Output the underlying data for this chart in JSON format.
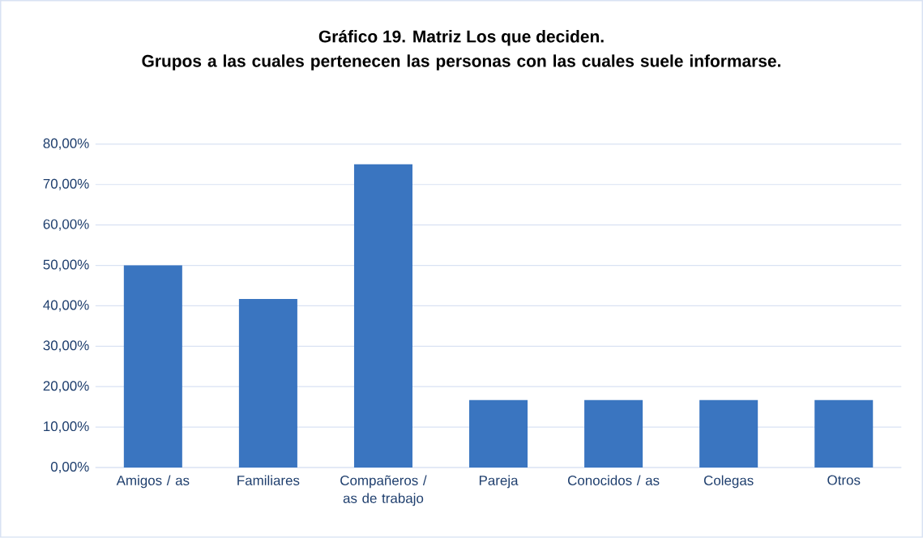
{
  "chart_data": {
    "type": "bar",
    "title": "Gráfico 19. Matriz Los que deciden.",
    "subtitle": "Grupos a las cuales pertenecen las personas con las cuales suele informarse.",
    "categories": [
      "Amigos / as",
      "Familiares",
      "Compañeros / as de trabajo",
      "Pareja",
      "Conocidos / as",
      "Colegas",
      "Otros"
    ],
    "values": [
      50,
      41.7,
      75,
      16.7,
      16.7,
      16.7,
      16.7
    ],
    "color": "#3a75c0",
    "ylim": [
      0,
      80
    ],
    "yticks": [
      {
        "value": 0,
        "label": "0,00%"
      },
      {
        "value": 10,
        "label": "10,00%"
      },
      {
        "value": 20,
        "label": "20,00%"
      },
      {
        "value": 30,
        "label": "30,00%"
      },
      {
        "value": 40,
        "label": "40,00%"
      },
      {
        "value": 50,
        "label": "50,00%"
      },
      {
        "value": 60,
        "label": "60,00%"
      },
      {
        "value": 70,
        "label": "70,00%"
      },
      {
        "value": 80,
        "label": "80,00%"
      }
    ],
    "grid": "y"
  }
}
